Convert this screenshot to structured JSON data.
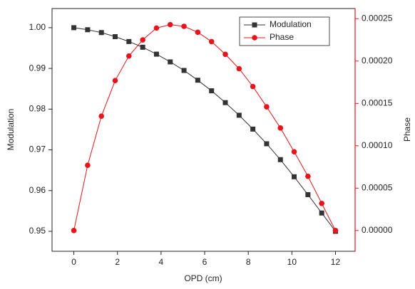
{
  "chart_data": {
    "type": "line",
    "x_label": "OPD (cm)",
    "y_label": "Modulation",
    "y2_label": "Phase",
    "x": [
      0,
      0.632,
      1.263,
      1.895,
      2.526,
      3.158,
      3.789,
      4.421,
      5.053,
      5.684,
      6.316,
      6.947,
      7.579,
      8.211,
      8.842,
      9.474,
      10.105,
      10.737,
      11.368,
      12
    ],
    "series": [
      {
        "name": "Modulation",
        "color": "#333333",
        "marker": "square",
        "values": [
          1.0,
          0.9995,
          0.9988,
          0.9978,
          0.9966,
          0.9952,
          0.9935,
          0.9916,
          0.9895,
          0.9871,
          0.9845,
          0.9816,
          0.9785,
          0.9751,
          0.9715,
          0.9676,
          0.9634,
          0.959,
          0.9545,
          0.95
        ]
      },
      {
        "name": "Phase",
        "color": "#e8141c",
        "marker": "circle",
        "axis": "y2",
        "values": [
          0,
          7.7e-05,
          0.000135,
          0.000177,
          0.000206,
          0.000225,
          0.000239,
          0.000243,
          0.000241,
          0.000234,
          0.000223,
          0.000208,
          0.000191,
          0.00017,
          0.000146,
          0.000121,
          9.3e-05,
          6.4e-05,
          3.2e-05,
          0
        ]
      }
    ],
    "xlim": [
      -1,
      12.9
    ],
    "xticks": [
      0,
      2,
      4,
      6,
      8,
      10,
      12
    ],
    "ylim": [
      0.9451,
      1.0047
    ],
    "yticks": [
      0.95,
      0.96,
      0.97,
      0.98,
      0.99,
      {
        "value": 1.0,
        "label": "1.00"
      }
    ],
    "y2lim": [
      -2.45e-05,
      0.000262
    ],
    "y2ticks": [
      {
        "value": 0,
        "label": "0.00000"
      },
      {
        "value": 5e-05,
        "label": "0.00005"
      },
      {
        "value": 0.0001,
        "label": "0.00010"
      },
      {
        "value": 0.00015,
        "label": "0.00015"
      },
      {
        "value": 0.0002,
        "label": "0.00020"
      },
      {
        "value": 0.00025,
        "label": "0.00025"
      }
    ],
    "legend": "top-right"
  }
}
